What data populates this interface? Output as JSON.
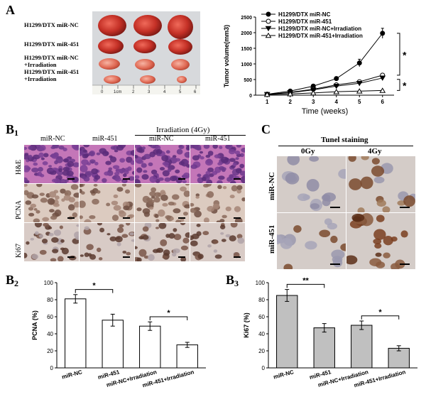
{
  "panelA": {
    "letter": "A",
    "photo_labels": [
      "H1299/DTX miR-NC",
      "H1299/DTX miR-451",
      "H1299/DTX miR-NC\n+Irradiation",
      "H1299/DTX miR-451\n+Irradiation"
    ],
    "ruler_ticks": [
      "0",
      "1cm",
      "2",
      "3",
      "4",
      "5",
      "6"
    ],
    "chart_data": {
      "type": "line",
      "ylabel": "Tumor volume(mm3)",
      "xlabel": "Time (weeks)",
      "x": [
        1,
        2,
        3,
        4,
        5,
        6
      ],
      "ylim": [
        0,
        2500
      ],
      "yticks": [
        0,
        500,
        1000,
        1500,
        2000,
        2500
      ],
      "series": [
        {
          "name": "H1299/DTX miR-NC",
          "marker": "filled-circle",
          "values": [
            30,
            130,
            290,
            530,
            1030,
            1980
          ],
          "errors": [
            5,
            20,
            40,
            60,
            120,
            160
          ]
        },
        {
          "name": "H1299/DTX miR-451",
          "marker": "open-circle",
          "values": [
            25,
            90,
            190,
            330,
            430,
            640
          ],
          "errors": [
            5,
            15,
            20,
            30,
            40,
            50
          ]
        },
        {
          "name": "H1299/DTX miR-NC+Irradiation",
          "marker": "filled-triangle",
          "values": [
            25,
            80,
            170,
            290,
            380,
            550
          ],
          "errors": [
            5,
            10,
            20,
            25,
            35,
            45
          ]
        },
        {
          "name": "H1299/DTX miR-451+Irradiation",
          "marker": "open-triangle",
          "values": [
            20,
            40,
            70,
            110,
            130,
            150
          ],
          "errors": [
            3,
            5,
            8,
            10,
            12,
            15
          ]
        }
      ],
      "annotations": [
        "*",
        "*"
      ]
    }
  },
  "panelB1": {
    "letter": "B",
    "subscript": "1",
    "group_header": "Irradiation (4Gy)",
    "columns": [
      "miR-NC",
      "miR-451",
      "miR-NC",
      "miR-451"
    ],
    "rows": [
      "H&E",
      "PCNA",
      "Ki67"
    ]
  },
  "panelC": {
    "letter": "C",
    "title": "Tunel staining",
    "columns": [
      "0Gy",
      "4Gy"
    ],
    "rows": [
      "miR-NC",
      "miR-451"
    ]
  },
  "panelB2": {
    "letter": "B",
    "subscript": "2",
    "chart_data": {
      "type": "bar",
      "ylabel": "PCNA (%)",
      "categories": [
        "miR-NC",
        "miR-451",
        "miR-NC+Irradiation",
        "miR-451+Irradiation"
      ],
      "values": [
        81,
        56,
        49,
        27
      ],
      "errors": [
        5,
        7,
        5,
        3
      ],
      "ylim": [
        0,
        100
      ],
      "yticks": [
        0,
        20,
        40,
        60,
        80,
        100
      ],
      "bar_color": "#ffffff",
      "annotations": [
        "*",
        "*"
      ]
    }
  },
  "panelB3": {
    "letter": "B",
    "subscript": "3",
    "chart_data": {
      "type": "bar",
      "ylabel": "Ki67 (%)",
      "categories": [
        "miR-NC",
        "miR-451",
        "miR-NC+Irradiation",
        "miR-451+Irradiation"
      ],
      "values": [
        85,
        47,
        50,
        23
      ],
      "errors": [
        7,
        5,
        5,
        3
      ],
      "ylim": [
        0,
        100
      ],
      "yticks": [
        0,
        20,
        40,
        60,
        80,
        100
      ],
      "bar_color": "#c0c0c0",
      "annotations": [
        "**",
        "*"
      ]
    }
  }
}
